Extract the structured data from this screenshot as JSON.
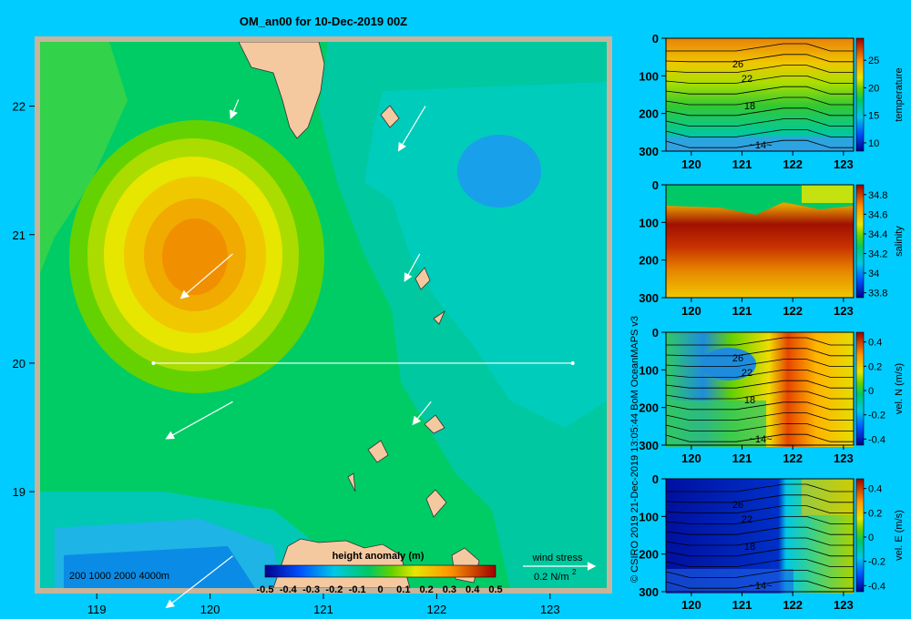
{
  "title": "OM_an00 for 10-Dec-2019 00Z",
  "credits": "© CSIRO 2019   21-Dec-2019 13:05:44 BoM OceanMAPS v3",
  "colors": {
    "background": "#00ccff",
    "land": "#f5c9a0",
    "frame": "#c8b49a",
    "vector": "#ffffff"
  },
  "depth_legend": "200  1000  2000  4000m",
  "colorbar": {
    "label": "height anomaly (m)",
    "ticks": [
      "-0.5",
      "-0.4",
      "-0.3",
      "-0.2",
      "-0.1",
      "0",
      "0.1",
      "0.2",
      "0.3",
      "0.4",
      "0.5"
    ]
  },
  "wind_stress": {
    "label": "wind stress",
    "scale": "0.2 N/m",
    "exponent": "2"
  },
  "chart_data": [
    {
      "type": "heatmap",
      "title": "OM_an00 for 10-Dec-2019 00Z",
      "variable": "height anomaly (m)",
      "xlim": [
        118.5,
        123.5
      ],
      "ylim": [
        18.25,
        22.5
      ],
      "x_ticks": [
        "119",
        "120",
        "121",
        "122",
        "123"
      ],
      "y_ticks": [
        "19",
        "20",
        "21",
        "22"
      ],
      "section_line": {
        "lon": [
          119.5,
          123.2
        ],
        "lat": [
          20.0,
          20.0
        ]
      },
      "anomaly_centers": [
        {
          "lon": 119.85,
          "lat": 20.95,
          "value": 0.3
        },
        {
          "lon": 122.3,
          "lat": 21.6,
          "value": -0.2
        },
        {
          "lon": 120.0,
          "lat": 18.5,
          "value": -0.2
        }
      ],
      "wind_vectors": [
        {
          "lon": 120.25,
          "lat": 22.05,
          "u": -0.05,
          "v": -0.12
        },
        {
          "lon": 121.9,
          "lat": 22.0,
          "u": -0.18,
          "v": -0.3
        },
        {
          "lon": 120.2,
          "lat": 20.85,
          "u": -0.35,
          "v": -0.3
        },
        {
          "lon": 120.2,
          "lat": 19.7,
          "u": -0.45,
          "v": -0.25
        },
        {
          "lon": 121.85,
          "lat": 20.85,
          "u": -0.1,
          "v": -0.18
        },
        {
          "lon": 121.95,
          "lat": 19.7,
          "u": -0.12,
          "v": -0.15
        },
        {
          "lon": 120.2,
          "lat": 18.5,
          "u": -0.45,
          "v": -0.35
        }
      ]
    },
    {
      "type": "heatmap",
      "variable": "temperature",
      "x_ticks": [
        "120",
        "121",
        "122",
        "123"
      ],
      "y_ticks": [
        "0",
        "100",
        "200",
        "300"
      ],
      "xlim": [
        119.5,
        123.2
      ],
      "ylim": [
        0,
        300
      ],
      "colorbar_ticks": [
        "25",
        "20",
        "15",
        "10"
      ],
      "contour_labels": [
        "26",
        "22",
        "18",
        "14"
      ]
    },
    {
      "type": "heatmap",
      "variable": "salinity",
      "x_ticks": [
        "120",
        "121",
        "122",
        "123"
      ],
      "y_ticks": [
        "0",
        "100",
        "200",
        "300"
      ],
      "xlim": [
        119.5,
        123.2
      ],
      "ylim": [
        0,
        300
      ],
      "colorbar_ticks": [
        "34.8",
        "34.6",
        "34.4",
        "34.2",
        "34",
        "33.8"
      ]
    },
    {
      "type": "heatmap",
      "variable": "vel. N (m/s)",
      "x_ticks": [
        "120",
        "121",
        "122",
        "123"
      ],
      "y_ticks": [
        "0",
        "100",
        "200",
        "300"
      ],
      "xlim": [
        119.5,
        123.2
      ],
      "ylim": [
        0,
        300
      ],
      "colorbar_ticks": [
        "0.4",
        "0.2",
        "0",
        "-0.2",
        "-0.4"
      ],
      "contour_labels": [
        "26",
        "22",
        "18",
        "14"
      ]
    },
    {
      "type": "heatmap",
      "variable": "vel. E (m/s)",
      "x_ticks": [
        "120",
        "121",
        "122",
        "123"
      ],
      "y_ticks": [
        "0",
        "100",
        "200",
        "300"
      ],
      "xlim": [
        119.5,
        123.2
      ],
      "ylim": [
        0,
        300
      ],
      "colorbar_ticks": [
        "0.4",
        "0.2",
        "0",
        "-0.2",
        "-0.4"
      ],
      "contour_labels": [
        "26",
        "22",
        "18",
        "14"
      ]
    }
  ]
}
